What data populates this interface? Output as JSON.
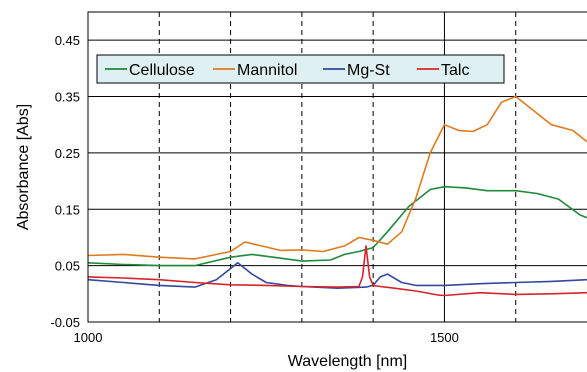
{
  "chart_data": {
    "type": "line",
    "title": "",
    "xlabel": "Wavelength [nm]",
    "ylabel": "Absorbance [Abs]",
    "xlim": [
      1000,
      1700
    ],
    "ylim": [
      -0.05,
      0.5
    ],
    "x_ticks": [
      1000,
      1500
    ],
    "x_tick_labels": [
      "1000",
      "1500"
    ],
    "y_ticks": [
      -0.05,
      0.05,
      0.15,
      0.25,
      0.35,
      0.45
    ],
    "y_tick_labels": [
      "-0.05",
      "0.05",
      "0.15",
      "0.25",
      "0.35",
      "0.45"
    ],
    "grid": {
      "horizontal_solid_at": [
        0.05,
        0.15,
        0.25,
        0.35,
        0.45
      ],
      "vertical_dashed_at": [
        1100,
        1200,
        1300,
        1400,
        1600
      ],
      "vertical_solid_at": [
        1500
      ]
    },
    "legend": {
      "position": "top-left",
      "background": "#dff0f2"
    },
    "series": [
      {
        "name": "Cellulose",
        "color": "#1f8a3c",
        "x": [
          1000,
          1050,
          1100,
          1150,
          1200,
          1230,
          1260,
          1300,
          1340,
          1360,
          1380,
          1400,
          1420,
          1450,
          1480,
          1500,
          1530,
          1560,
          1600,
          1630,
          1660,
          1690,
          1700
        ],
        "y": [
          0.055,
          0.052,
          0.05,
          0.05,
          0.065,
          0.07,
          0.065,
          0.058,
          0.06,
          0.07,
          0.075,
          0.082,
          0.11,
          0.155,
          0.185,
          0.19,
          0.188,
          0.183,
          0.183,
          0.178,
          0.168,
          0.14,
          0.135
        ]
      },
      {
        "name": "Mannitol",
        "color": "#e07a1f",
        "x": [
          1000,
          1050,
          1100,
          1150,
          1200,
          1220,
          1250,
          1270,
          1300,
          1330,
          1360,
          1380,
          1400,
          1420,
          1440,
          1460,
          1480,
          1500,
          1520,
          1540,
          1560,
          1580,
          1600,
          1620,
          1650,
          1680,
          1700
        ],
        "y": [
          0.068,
          0.07,
          0.065,
          0.062,
          0.075,
          0.092,
          0.083,
          0.077,
          0.078,
          0.075,
          0.085,
          0.1,
          0.095,
          0.088,
          0.11,
          0.17,
          0.25,
          0.3,
          0.29,
          0.288,
          0.3,
          0.34,
          0.35,
          0.33,
          0.3,
          0.29,
          0.27
        ]
      },
      {
        "name": "Mg-St",
        "color": "#3348a0",
        "x": [
          1000,
          1050,
          1100,
          1150,
          1180,
          1200,
          1210,
          1230,
          1250,
          1280,
          1300,
          1350,
          1390,
          1400,
          1410,
          1420,
          1440,
          1460,
          1500,
          1550,
          1600,
          1650,
          1700
        ],
        "y": [
          0.025,
          0.02,
          0.015,
          0.012,
          0.025,
          0.045,
          0.055,
          0.035,
          0.02,
          0.015,
          0.013,
          0.01,
          0.012,
          0.015,
          0.03,
          0.035,
          0.02,
          0.015,
          0.015,
          0.018,
          0.02,
          0.022,
          0.025
        ]
      },
      {
        "name": "Talc",
        "color": "#d8232a",
        "x": [
          1000,
          1050,
          1100,
          1150,
          1200,
          1250,
          1300,
          1350,
          1380,
          1385,
          1390,
          1395,
          1400,
          1410,
          1430,
          1460,
          1490,
          1500,
          1550,
          1600,
          1650,
          1700
        ],
        "y": [
          0.03,
          0.028,
          0.025,
          0.02,
          0.016,
          0.015,
          0.013,
          0.012,
          0.013,
          0.03,
          0.085,
          0.03,
          0.015,
          0.013,
          0.01,
          0.005,
          -0.002,
          -0.003,
          0.002,
          -0.001,
          0.0,
          0.002
        ]
      }
    ]
  }
}
